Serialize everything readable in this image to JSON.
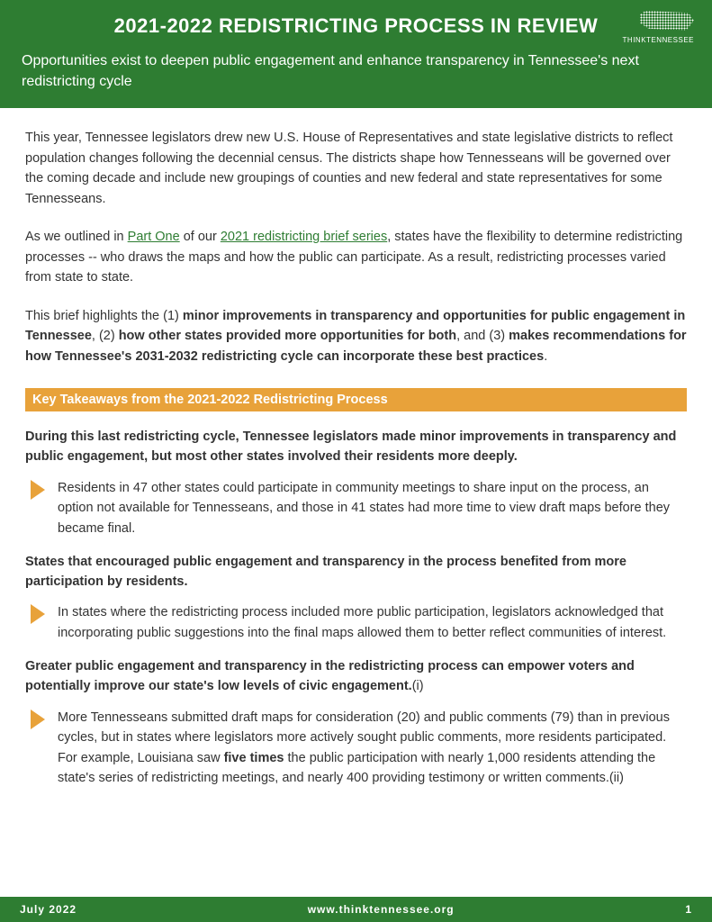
{
  "colors": {
    "brand_green": "#2e7d32",
    "accent_orange": "#e8a23a",
    "text": "#333333",
    "white": "#ffffff"
  },
  "header": {
    "title": "2021-2022 REDISTRICTING PROCESS IN REVIEW",
    "subtitle": "Opportunities exist to deepen public engagement and enhance transparency in Tennessee's next redistricting cycle",
    "logo_label": "THINKTENNESSEE"
  },
  "intro": {
    "p1": "This year, Tennessee legislators drew new U.S. House of Representatives and state legislative districts to reflect population changes following the decennial census. The districts shape how Tennesseans will be governed over the coming decade and include new groupings of counties and new federal and state representatives for some Tennesseans.",
    "p2_pre": "As we outlined in ",
    "p2_link1": "Part One",
    "p2_mid": " of our ",
    "p2_link2": "2021 redistricting brief series",
    "p2_post": ", states have the flexibility to determine redistricting processes -- who draws the maps and how the public can participate. As a result, redistricting processes varied from state to state.",
    "p3_pre": "This brief highlights the  (1) ",
    "p3_b1": "minor improvements in transparency and opportunities for public engagement in Tennessee",
    "p3_mid1": ",  (2) ",
    "p3_b2": "how other states provided more opportunities for both",
    "p3_mid2": ", and (3) ",
    "p3_b3": "makes recommendations for how Tennessee's 2031-2032 redistricting cycle can incorporate these best practices",
    "p3_post": "."
  },
  "section_bar": "Key Takeaways from the 2021-2022 Redistricting Process",
  "takeaways": {
    "t1_head": "During this last redistricting cycle, Tennessee legislators made minor improvements in transparency and public engagement, but most other states involved their residents more deeply.",
    "t1_body": "Residents in 47 other states could participate in community meetings to share input on the process, an option not available for Tennesseans, and those in 41 states had more time to view draft maps before they became final.",
    "t2_head": "States that encouraged public engagement and transparency in the process benefited from more participation by residents.",
    "t2_body": "In states where the redistricting process included more public participation, legislators acknowledged that incorporating public suggestions into the final maps allowed them to better reflect communities of interest.",
    "t3_head_pre": "Greater public engagement and transparency in the redistricting process can empower voters and potentially improve our state's low levels of civic engagement.",
    "t3_head_cite": "(i)",
    "t3_body_pre": "More Tennesseans submitted draft maps for consideration (20) and public comments (79) than in previous cycles, but in states where legislators more actively sought public comments, more residents participated. For example, Louisiana saw ",
    "t3_body_bold": "five times",
    "t3_body_post": " the public participation with nearly 1,000 residents attending the state's series of redistricting meetings, and nearly 400 providing testimony or written comments.(ii)"
  },
  "footer": {
    "date": "July 2022",
    "url": "www.thinktennessee.org",
    "page": "1"
  }
}
